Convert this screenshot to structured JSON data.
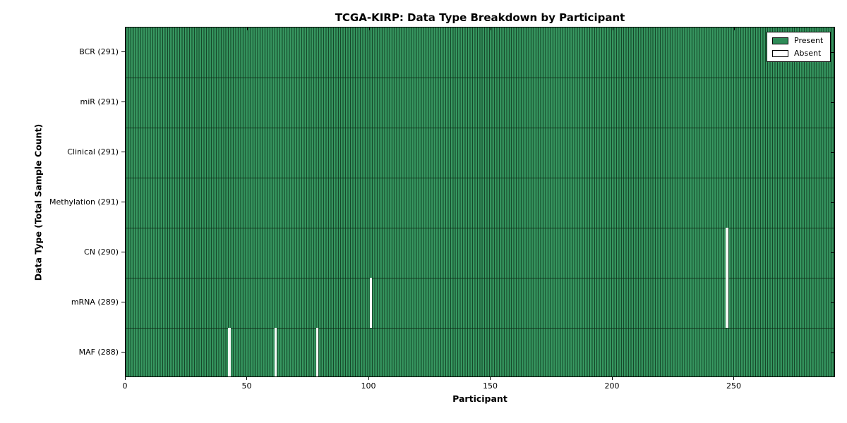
{
  "chart_data": {
    "type": "heatmap",
    "title": "TCGA-KIRP: Data Type Breakdown by Participant",
    "xlabel": "Participant",
    "ylabel": "Data Type (Total Sample Count)",
    "x_ticks": [
      0,
      50,
      100,
      150,
      200,
      250
    ],
    "x_range": [
      0,
      291
    ],
    "n_participants": 291,
    "rows": [
      {
        "label": "BCR",
        "total": 291,
        "absent_participants": []
      },
      {
        "label": "miR",
        "total": 291,
        "absent_participants": []
      },
      {
        "label": "Clinical",
        "total": 291,
        "absent_participants": []
      },
      {
        "label": "Methylation",
        "total": 291,
        "absent_participants": []
      },
      {
        "label": "CN",
        "total": 290,
        "absent_participants": [
          246
        ]
      },
      {
        "label": "mRNA",
        "total": 289,
        "absent_participants": [
          100,
          246
        ]
      },
      {
        "label": "MAF",
        "total": 288,
        "absent_participants": [
          42,
          61,
          78
        ]
      }
    ],
    "legend": {
      "position": "upper right",
      "entries": [
        {
          "label": "Present",
          "color": "#2e8b57"
        },
        {
          "label": "Absent",
          "color": "#ffffff"
        }
      ]
    },
    "colors": {
      "present": "#2e8b57",
      "present_light": "#3fa068",
      "present_edge": "#16482a",
      "absent": "#ffffff",
      "boundary": "#0d2a16",
      "frame": "#000000"
    },
    "grid": false
  }
}
